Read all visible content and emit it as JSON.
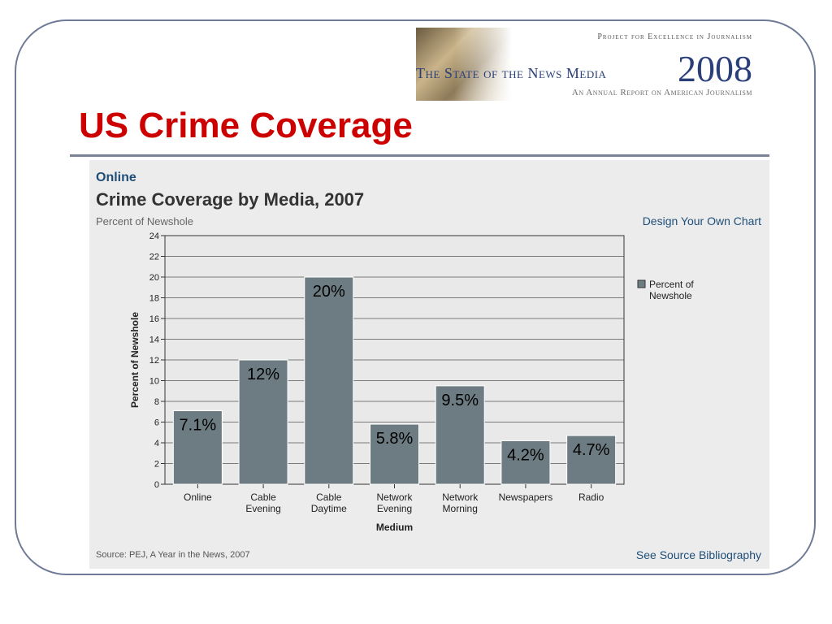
{
  "banner": {
    "org": "Project for Excellence in Journalism",
    "title": "The State of the News Media",
    "year": "2008",
    "subtitle": "An Annual Report on American Journalism"
  },
  "slide": {
    "title": "US Crime Coverage"
  },
  "panel": {
    "section": "Online",
    "design_link": "Design Your Own Chart",
    "source": "Source: PEJ, A Year in the News, 2007",
    "bibliography_link": "See Source Bibliography"
  },
  "colors": {
    "bar": "#6d7c82",
    "title_red": "#cc0000",
    "link_blue": "#1f4e79"
  },
  "chart_data": {
    "type": "bar",
    "title": "Crime Coverage by Media, 2007",
    "subtitle": "Percent of Newshole",
    "xlabel": "Medium",
    "ylabel": "Percent of Newshole",
    "categories": [
      [
        "Online"
      ],
      [
        "Cable",
        "Evening"
      ],
      [
        "Cable",
        "Daytime"
      ],
      [
        "Network",
        "Evening"
      ],
      [
        "Network",
        "Morning"
      ],
      [
        "Newspapers"
      ],
      [
        "Radio"
      ]
    ],
    "series": [
      {
        "name": "Percent of Newshole",
        "values": [
          7.1,
          12,
          20,
          5.8,
          9.5,
          4.2,
          4.7
        ],
        "labels": [
          "7.1%",
          "12%",
          "20%",
          "5.8%",
          "9.5%",
          "4.2%",
          "4.7%"
        ]
      }
    ],
    "legend_lines": [
      "Percent of",
      "Newshole"
    ],
    "ylim": [
      0,
      24
    ],
    "yticks": [
      0,
      2,
      4,
      6,
      8,
      10,
      12,
      14,
      16,
      18,
      20,
      22,
      24
    ],
    "grid": true,
    "legend": "right"
  }
}
